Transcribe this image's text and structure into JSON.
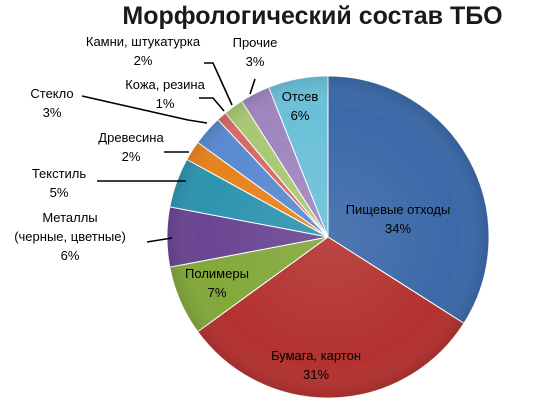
{
  "chart_data": {
    "type": "pie",
    "title": "Морфологический состав ТБО",
    "slices": [
      {
        "name": "Пищевые отходы",
        "label_lines": [
          "Пищевые отходы"
        ],
        "value": 34,
        "value_label": "34%",
        "color": "#3b69a8"
      },
      {
        "name": "Бумага, картон",
        "label_lines": [
          "Бумага, картон"
        ],
        "value": 31,
        "value_label": "31%",
        "color": "#b3322f"
      },
      {
        "name": "Полимеры",
        "label_lines": [
          "Полимеры"
        ],
        "value": 7,
        "value_label": "7%",
        "color": "#82a83a"
      },
      {
        "name": "Металлы (черные, цветные)",
        "label_lines": [
          "Металлы",
          "(черные, цветные)"
        ],
        "value": 6,
        "value_label": "6%",
        "color": "#6a4592"
      },
      {
        "name": "Текстиль",
        "label_lines": [
          "Текстиль"
        ],
        "value": 5,
        "value_label": "5%",
        "color": "#2e94b0"
      },
      {
        "name": "Древесина",
        "label_lines": [
          "Древесина"
        ],
        "value": 2,
        "value_label": "2%",
        "color": "#e8821f"
      },
      {
        "name": "Стекло",
        "label_lines": [
          "Стекло"
        ],
        "value": 3,
        "value_label": "3%",
        "color": "#5a8ad0"
      },
      {
        "name": "Кожа, резина",
        "label_lines": [
          "Кожа, резина"
        ],
        "value": 1,
        "value_label": "1%",
        "color": "#d66a66"
      },
      {
        "name": "Камни, штукатурка",
        "label_lines": [
          "Камни, штукатурка"
        ],
        "value": 2,
        "value_label": "2%",
        "color": "#a9c874"
      },
      {
        "name": "Прочие",
        "label_lines": [
          "Прочие"
        ],
        "value": 3,
        "value_label": "3%",
        "color": "#9f86bf"
      },
      {
        "name": "Отсев",
        "label_lines": [
          "Отсев"
        ],
        "value": 6,
        "value_label": "6%",
        "color": "#6ac0d8"
      }
    ]
  }
}
